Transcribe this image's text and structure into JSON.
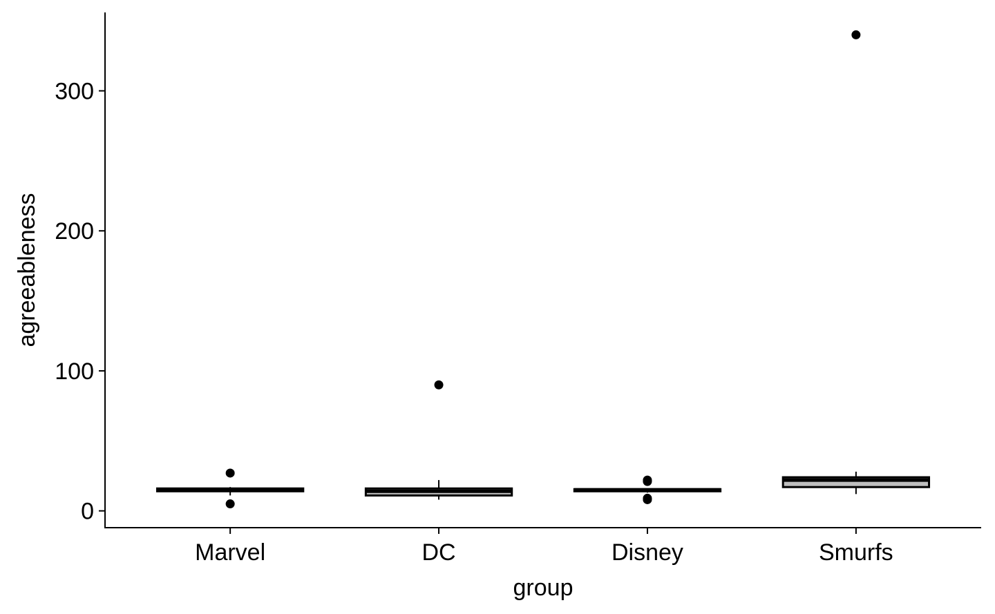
{
  "chart_data": {
    "type": "boxplot",
    "title": "",
    "xlabel": "group",
    "ylabel": "agreeableness",
    "ylim": [
      -12,
      356
    ],
    "yticks": [
      0,
      100,
      200,
      300
    ],
    "grid": false,
    "legend": "none",
    "categories": [
      "Marvel",
      "DC",
      "Disney",
      "Smurfs"
    ],
    "boxes": [
      {
        "category": "Marvel",
        "whisker_low": 11,
        "q1": 14,
        "median": 15,
        "q3": 16,
        "whisker_high": 17,
        "outliers": [
          27,
          5
        ]
      },
      {
        "category": "DC",
        "whisker_low": 8,
        "q1": 11,
        "median": 14,
        "q3": 16,
        "whisker_high": 22,
        "outliers": [
          90
        ]
      },
      {
        "category": "Disney",
        "whisker_low": 13,
        "q1": 14,
        "median": 15,
        "q3": 15.5,
        "whisker_high": 16,
        "outliers": [
          22,
          21,
          9,
          8
        ]
      },
      {
        "category": "Smurfs",
        "whisker_low": 12,
        "q1": 17,
        "median": 22,
        "q3": 24,
        "whisker_high": 28,
        "outliers": [
          340
        ]
      }
    ],
    "colors": {
      "box_fill": "#bebebe",
      "stroke": "#000000",
      "background": "#ffffff"
    }
  }
}
